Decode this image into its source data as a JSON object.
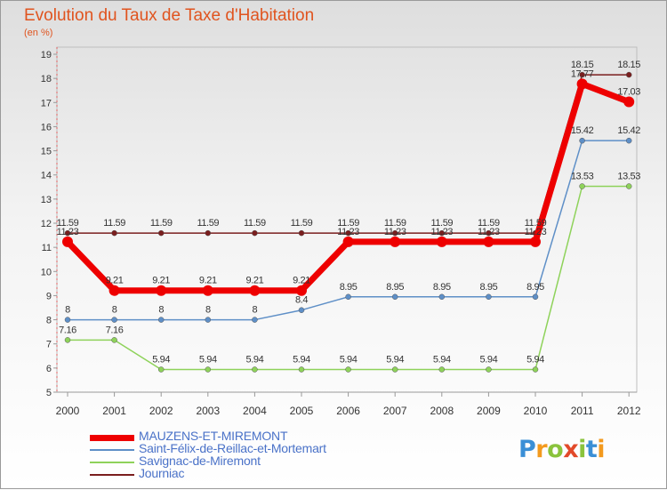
{
  "title": "Evolution du Taux de Taxe d'Habitation",
  "subtitle": "(en %)",
  "logo": {
    "text": "Proxiti",
    "letters": [
      {
        "ch": "P",
        "color": "#3a8fd6"
      },
      {
        "ch": "r",
        "color": "#f39a1e"
      },
      {
        "ch": "o",
        "color": "#8ac33c"
      },
      {
        "ch": "x",
        "color": "#e24a2a"
      },
      {
        "ch": "i",
        "color": "#8ac33c"
      },
      {
        "ch": "t",
        "color": "#3a8fd6"
      },
      {
        "ch": "i",
        "color": "#f39a1e"
      }
    ]
  },
  "chart_data": {
    "type": "line",
    "title": "Evolution du Taux de Taxe d'Habitation",
    "ylabel": "(en %)",
    "x": [
      "2000",
      "2001",
      "2002",
      "2003",
      "2004",
      "2005",
      "2006",
      "2007",
      "2008",
      "2009",
      "2010",
      "2011",
      "2012"
    ],
    "ylim": [
      5,
      19
    ],
    "yticks": [
      5,
      6,
      7,
      8,
      9,
      10,
      11,
      12,
      13,
      14,
      15,
      16,
      17,
      18,
      19
    ],
    "grid": false,
    "legend_position": "bottom",
    "series": [
      {
        "name": "MAUZENS-ET-MIREMONT",
        "color": "#ee0000",
        "values": [
          11.23,
          9.21,
          9.21,
          9.21,
          9.21,
          9.21,
          11.23,
          11.23,
          11.23,
          11.23,
          11.23,
          17.77,
          17.03
        ],
        "labels": [
          "11.23",
          "9.21",
          "9.21",
          "9.21",
          "9.21",
          "9.21",
          "11.23",
          "11.23",
          "11.23",
          "11.23",
          "11.23",
          "17.77",
          "17.03"
        ]
      },
      {
        "name": "Saint-Félix-de-Reillac-et-Mortemart",
        "color": "#5e8fc7",
        "values": [
          8,
          8,
          8,
          8,
          8,
          8.4,
          8.95,
          8.95,
          8.95,
          8.95,
          8.95,
          15.42,
          15.42
        ],
        "labels": [
          "8",
          "8",
          "8",
          "8",
          "8",
          "8.4",
          "8.95",
          "8.95",
          "8.95",
          "8.95",
          "8.95",
          "15.42",
          "15.42"
        ]
      },
      {
        "name": "Savignac-de-Miremont",
        "color": "#8ed25a",
        "values": [
          7.16,
          7.16,
          5.94,
          5.94,
          5.94,
          5.94,
          5.94,
          5.94,
          5.94,
          5.94,
          5.94,
          13.53,
          13.53
        ],
        "labels": [
          "7.16",
          "7.16",
          "5.94",
          "5.94",
          "5.94",
          "5.94",
          "5.94",
          "5.94",
          "5.94",
          "5.94",
          "5.94",
          "13.53",
          "13.53"
        ]
      },
      {
        "name": "Journiac",
        "color": "#7a1e1e",
        "values": [
          11.59,
          11.59,
          11.59,
          11.59,
          11.59,
          11.59,
          11.59,
          11.59,
          11.59,
          11.59,
          11.59,
          18.15,
          18.15
        ],
        "labels": [
          "11.59",
          "11.59",
          "11.59",
          "11.59",
          "11.59",
          "11.59",
          "11.59",
          "11.59",
          "11.59",
          "11.59",
          "11.59",
          "18.15",
          "18.15"
        ]
      }
    ]
  }
}
